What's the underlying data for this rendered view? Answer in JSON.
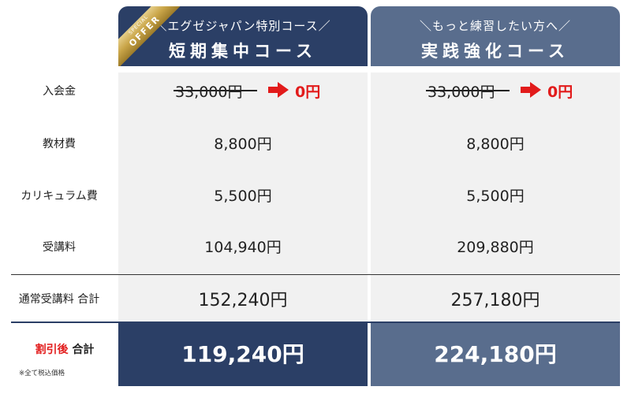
{
  "plans": [
    {
      "sub": "＼エグゼジャパン特別コース／",
      "main": "短期集中コース"
    },
    {
      "sub": "＼もっと練習したい方へ／",
      "main": "実践強化コース"
    }
  ],
  "ribbon": {
    "small": "SPECIAL",
    "big": "OFFER",
    "color": "#c9a548"
  },
  "rows": {
    "entry_fee": {
      "label": "入会金",
      "values": [
        {
          "original": "33,000円",
          "now": "0円"
        },
        {
          "original": "33,000円",
          "now": "0円"
        }
      ]
    },
    "materials": {
      "label": "教材費",
      "values": [
        "8,800円",
        "8,800円"
      ]
    },
    "curriculum": {
      "label": "カリキュラム費",
      "values": [
        "5,500円",
        "5,500円"
      ]
    },
    "tuition": {
      "label": "受講料",
      "values": [
        "104,940円",
        "209,880円"
      ]
    },
    "regular_total": {
      "label": "通常受講料 合計",
      "values": [
        "152,240円",
        "257,180円"
      ]
    },
    "discount_total": {
      "label_red": "割引後",
      "label_black": "合計",
      "values": [
        "119,240円",
        "224,180円"
      ]
    }
  },
  "note": "※全て税込価格",
  "colors": {
    "navy": "#2b3f66",
    "slate": "#596d8d",
    "red": "#e21b1b",
    "cell_bg": "#f1f1f1"
  }
}
